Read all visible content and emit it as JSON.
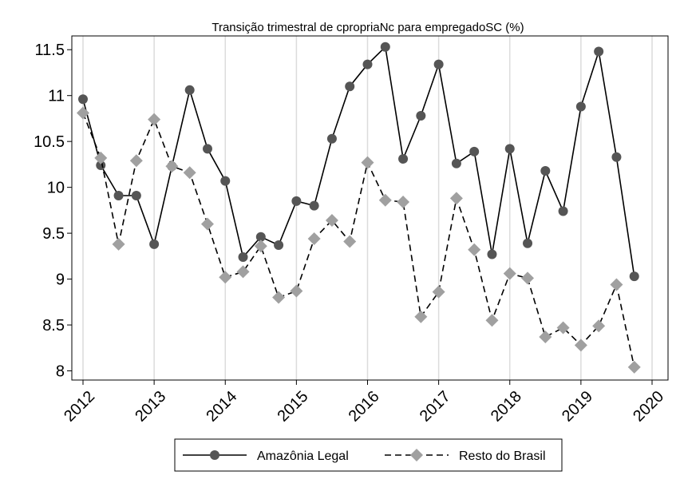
{
  "chart_data": {
    "type": "line",
    "title": "Transição trimestral de cpropriaNc para empregadoSC (%)",
    "xlabel": "",
    "ylabel": "",
    "xlim": [
      2012,
      2020
    ],
    "ylim": [
      7.9,
      11.65
    ],
    "x_ticks": [
      2012,
      2013,
      2014,
      2015,
      2016,
      2017,
      2018,
      2019,
      2020
    ],
    "y_ticks": [
      8,
      8.5,
      9,
      9.5,
      10,
      10.5,
      11,
      11.5
    ],
    "y_tick_labels": [
      "8",
      "8.5",
      "9",
      "9.5",
      "10",
      "10.5",
      "11",
      "11.5"
    ],
    "grid": "vertical",
    "legend_position": "bottom",
    "x": [
      2012,
      2012.25,
      2012.5,
      2012.75,
      2013,
      2013.25,
      2013.5,
      2013.75,
      2014,
      2014.25,
      2014.5,
      2014.75,
      2015,
      2015.25,
      2015.5,
      2015.75,
      2016,
      2016.25,
      2016.5,
      2016.75,
      2017,
      2017.25,
      2017.5,
      2017.75,
      2018,
      2018.25,
      2018.5,
      2018.75,
      2019,
      2019.25,
      2019.5,
      2019.75
    ],
    "series": [
      {
        "name": "Amazônia Legal",
        "color": "#555555",
        "line_style": "solid",
        "marker": "circle",
        "values": [
          10.96,
          10.24,
          9.91,
          9.91,
          9.38,
          10.23,
          11.06,
          10.42,
          10.07,
          9.24,
          9.46,
          9.37,
          9.85,
          9.8,
          10.53,
          11.1,
          11.34,
          11.53,
          10.31,
          10.78,
          11.34,
          10.26,
          10.39,
          9.27,
          10.42,
          9.39,
          10.18,
          9.74,
          10.88,
          11.48,
          10.33,
          9.03
        ]
      },
      {
        "name": "Resto do Brasil",
        "color": "#a0a0a0",
        "line_style": "dashed",
        "marker": "diamond",
        "values": [
          10.81,
          10.32,
          9.38,
          10.29,
          10.74,
          10.23,
          10.16,
          9.6,
          9.02,
          9.08,
          9.36,
          8.8,
          8.87,
          9.44,
          9.64,
          9.41,
          10.27,
          9.86,
          9.84,
          8.59,
          8.86,
          9.88,
          9.32,
          8.55,
          9.06,
          9.01,
          8.37,
          8.47,
          8.28,
          8.49,
          8.94,
          8.04
        ]
      }
    ]
  }
}
